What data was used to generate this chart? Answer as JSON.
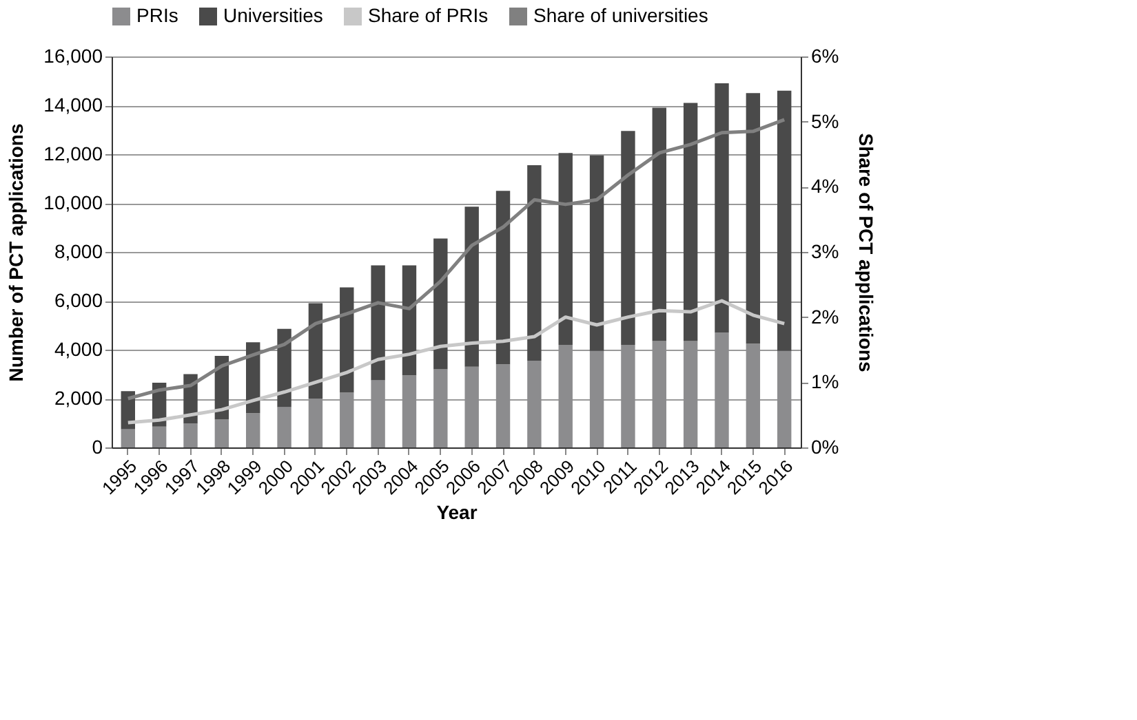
{
  "chart_data": {
    "type": "bar",
    "stacked": true,
    "xlabel": "Year",
    "ylabel": "Number of PCT applications",
    "y2label": "Share of PCT applications",
    "categories": [
      "1995",
      "1996",
      "1997",
      "1998",
      "1999",
      "2000",
      "2001",
      "2002",
      "2003",
      "2004",
      "2005",
      "2006",
      "2007",
      "2008",
      "2009",
      "2010",
      "2011",
      "2012",
      "2013",
      "2014",
      "2015",
      "2016"
    ],
    "series": [
      {
        "name": "PRIs",
        "color": "#8c8c8e",
        "values": [
          750,
          850,
          980,
          1150,
          1400,
          1650,
          2000,
          2250,
          2750,
          2950,
          3200,
          3300,
          3400,
          3550,
          4200,
          3950,
          4200,
          4350,
          4350,
          4700,
          4250,
          3950
        ]
      },
      {
        "name": "Universities",
        "color": "#4a4a4a",
        "values": [
          1550,
          1800,
          2020,
          2600,
          2900,
          3200,
          3900,
          4300,
          4700,
          4500,
          5350,
          6550,
          7100,
          8000,
          7850,
          8000,
          8750,
          9550,
          9750,
          10200,
          10250,
          10650
        ]
      },
      {
        "name": "Share of PRIs",
        "type": "line",
        "axis": "y2",
        "color": "#c8c8c8",
        "values": [
          0.38,
          0.42,
          0.5,
          0.58,
          0.72,
          0.85,
          1.0,
          1.15,
          1.35,
          1.43,
          1.55,
          1.6,
          1.63,
          1.7,
          2.0,
          1.88,
          2.0,
          2.1,
          2.08,
          2.25,
          2.03,
          1.9
        ]
      },
      {
        "name": "Share of universities",
        "type": "line",
        "axis": "y2",
        "color": "#808080",
        "values": [
          0.75,
          0.88,
          0.95,
          1.25,
          1.42,
          1.58,
          1.9,
          2.05,
          2.22,
          2.13,
          2.55,
          3.1,
          3.38,
          3.8,
          3.73,
          3.8,
          4.18,
          4.52,
          4.65,
          4.83,
          4.85,
          5.03
        ]
      }
    ],
    "ylim": [
      0,
      16000
    ],
    "yticks": [
      {
        "value": 0,
        "label": "0"
      },
      {
        "value": 2000,
        "label": "2,000"
      },
      {
        "value": 4000,
        "label": "4,000"
      },
      {
        "value": 6000,
        "label": "6,000"
      },
      {
        "value": 8000,
        "label": "8,000"
      },
      {
        "value": 10000,
        "label": "10,000"
      },
      {
        "value": 12000,
        "label": "12,000"
      },
      {
        "value": 14000,
        "label": "14,000"
      },
      {
        "value": 16000,
        "label": "16,000"
      }
    ],
    "y2lim": [
      0,
      6
    ],
    "y2ticks": [
      {
        "value": 0,
        "label": "0%"
      },
      {
        "value": 1,
        "label": "1%"
      },
      {
        "value": 2,
        "label": "2%"
      },
      {
        "value": 3,
        "label": "3%"
      },
      {
        "value": 4,
        "label": "4%"
      },
      {
        "value": 5,
        "label": "5%"
      },
      {
        "value": 6,
        "label": "6%"
      }
    ],
    "grid": "y",
    "legend": "top",
    "line_style": "solid",
    "marker": "none"
  }
}
